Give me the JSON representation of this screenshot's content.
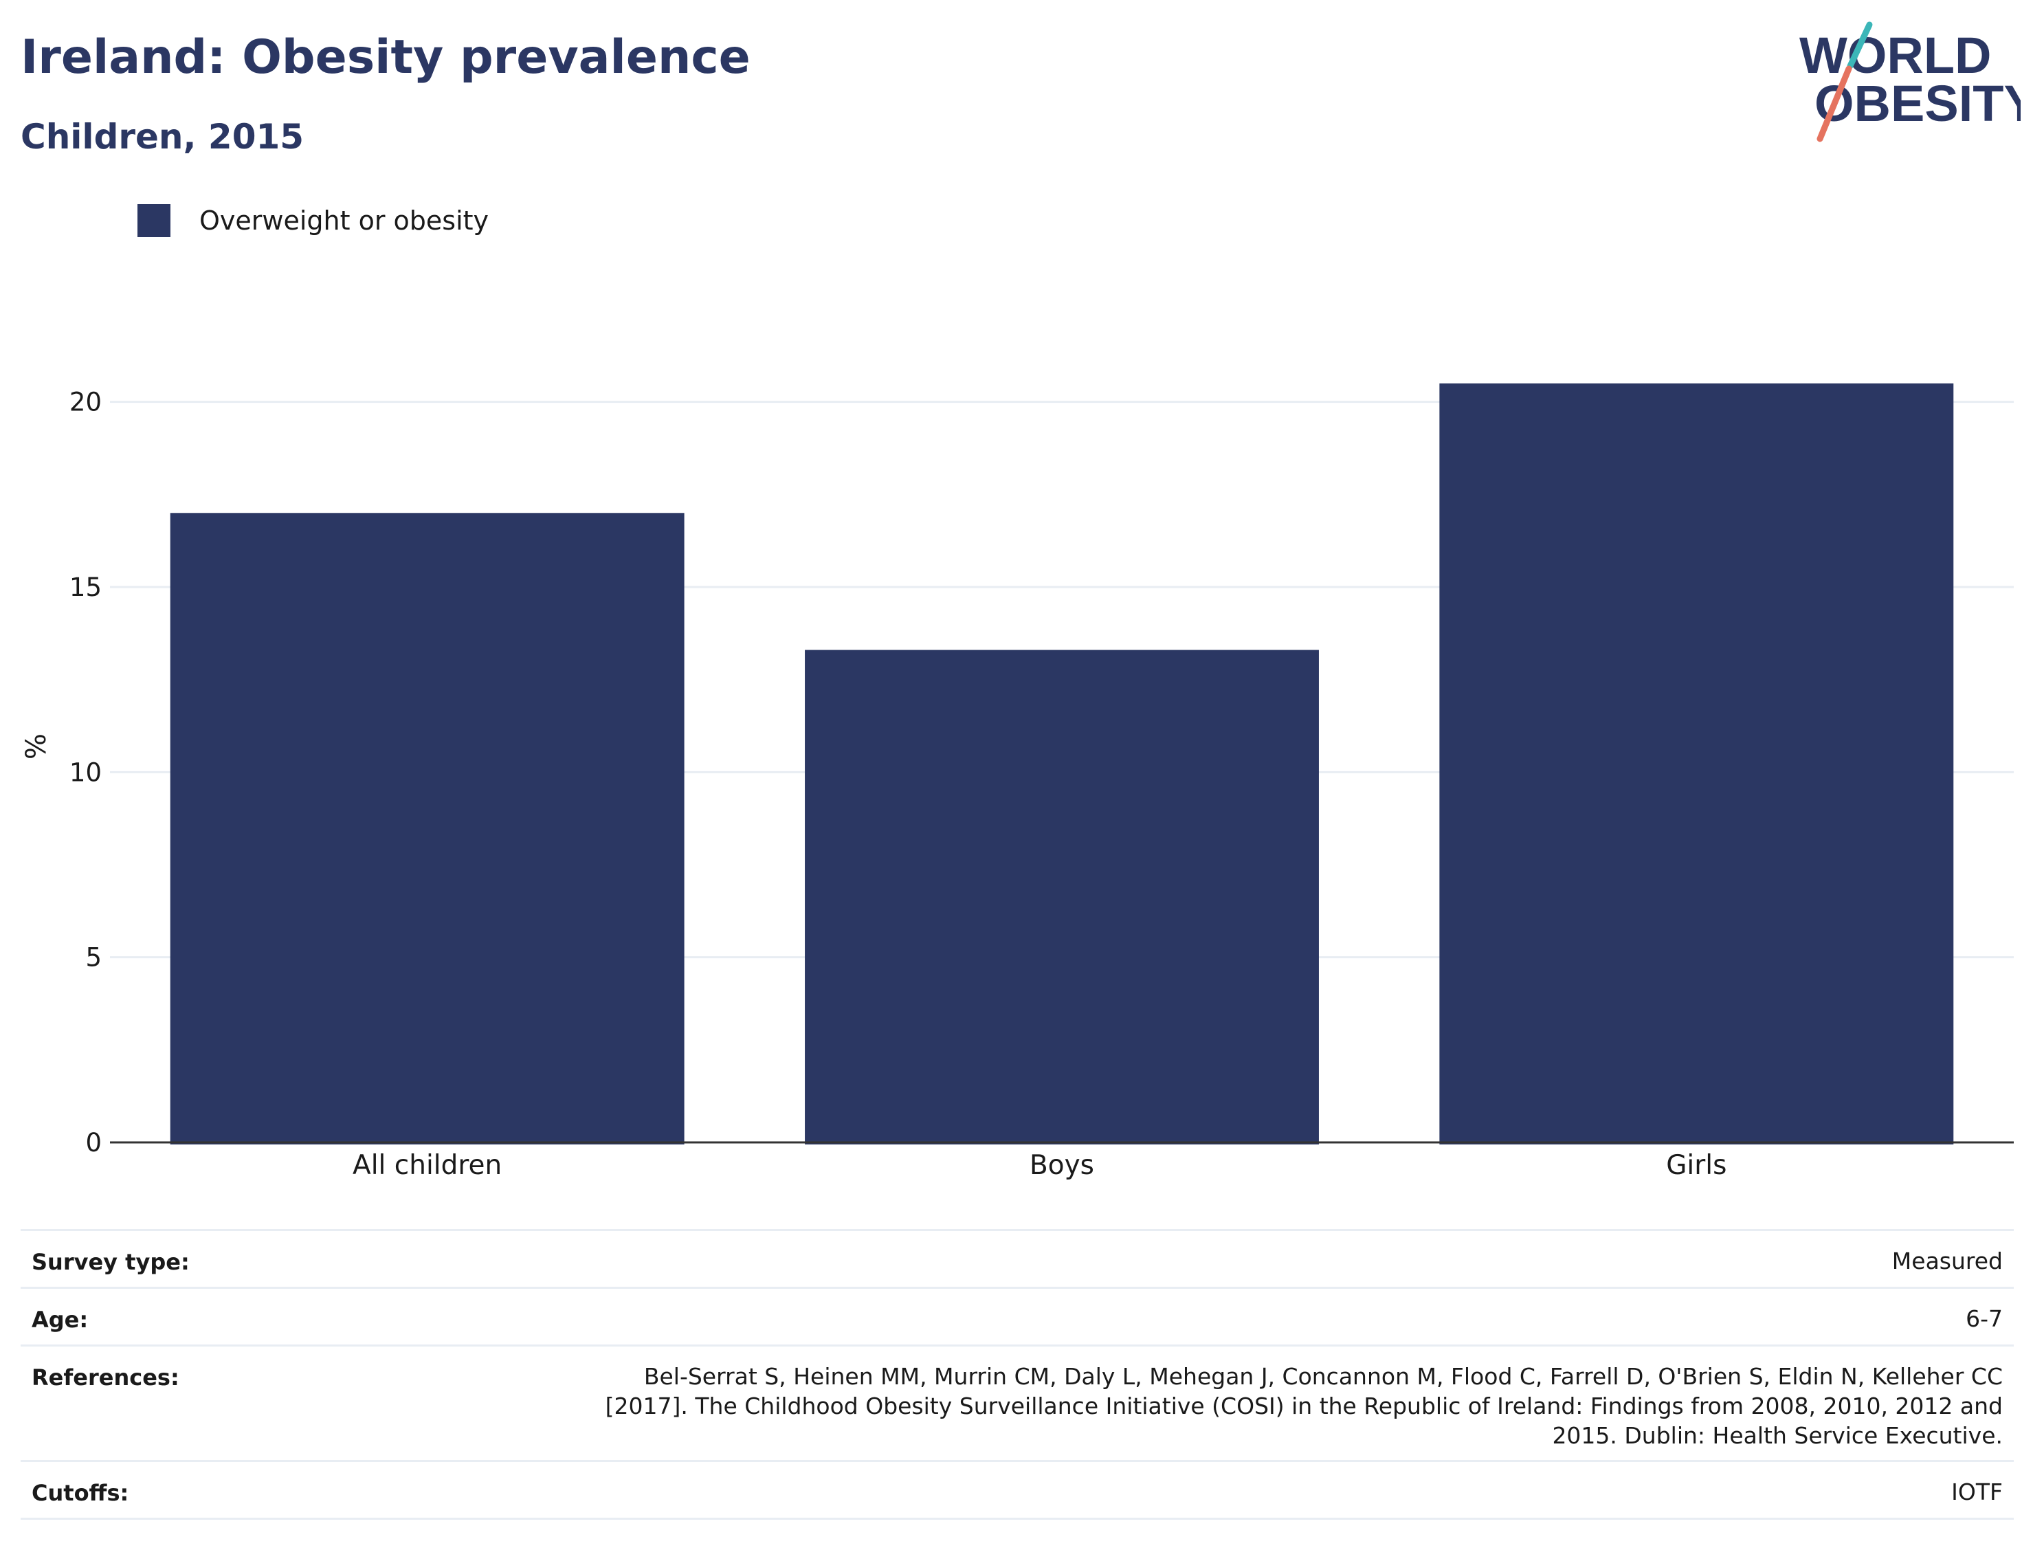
{
  "header": {
    "title": "Ireland: Obesity prevalence",
    "subtitle": "Children, 2015"
  },
  "logo": {
    "line1": "WORLD",
    "line2": "OBESITY"
  },
  "colors": {
    "bar": "#2b3763",
    "title": "#2b3763",
    "grid": "#e8edf3",
    "axis": "#333333"
  },
  "chart_data": {
    "type": "bar",
    "categories": [
      "All children",
      "Boys",
      "Girls"
    ],
    "series": [
      {
        "name": "Overweight or obesity",
        "values": [
          17.0,
          13.3,
          20.5
        ]
      }
    ],
    "ylabel": "%",
    "xlabel": "",
    "ylim": [
      0,
      22.5
    ],
    "yticks": [
      0,
      5,
      10,
      15,
      20
    ],
    "grid": true,
    "legend": "top-left"
  },
  "info": {
    "rows": [
      {
        "label": "Survey type:",
        "value": "Measured"
      },
      {
        "label": "Age:",
        "value": "6-7"
      },
      {
        "label": "References:",
        "value": "Bel-Serrat S, Heinen MM, Murrin CM, Daly L, Mehegan J, Concannon M, Flood C, Farrell D, O'Brien S, Eldin N, Kelleher CC [2017]. The Childhood Obesity Surveillance Initiative (COSI) in the Republic of Ireland: Findings from 2008, 2010, 2012 and 2015. Dublin: Health Service Executive."
      },
      {
        "label": "Cutoffs:",
        "value": "IOTF"
      }
    ]
  }
}
